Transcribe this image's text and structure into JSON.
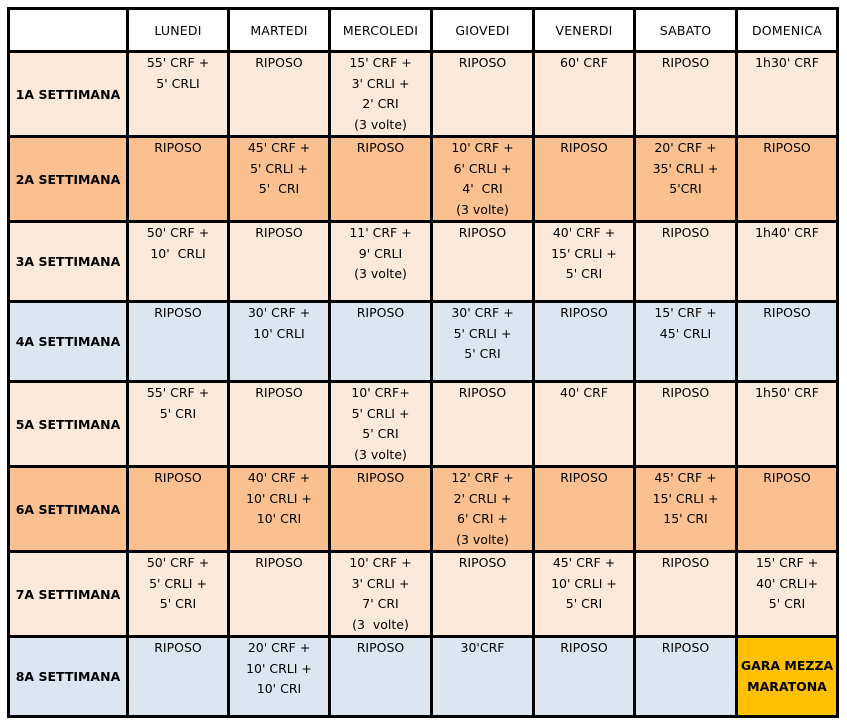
{
  "colors": {
    "light_peach": "#FDE9D9",
    "orange": "#FAC090",
    "light_blue": "#DCE6F1",
    "gold": "#FFC000"
  },
  "header": {
    "corner": "",
    "days": [
      "LUNEDI",
      "MARTEDI",
      "MERCOLEDI",
      "GIOVEDI",
      "VENERDI",
      "SABATO",
      "DOMENICA"
    ]
  },
  "weeks": [
    {
      "label": "1A SETTIMANA",
      "tone": "light_peach",
      "days": [
        [
          "55' CRF +",
          "5' CRLI"
        ],
        [
          "RIPOSO"
        ],
        [
          "15' CRF +",
          "3' CRLI +",
          "2' CRI",
          "(3 volte)"
        ],
        [
          "RIPOSO"
        ],
        [
          "60' CRF"
        ],
        [
          "RIPOSO"
        ],
        [
          "1h30' CRF"
        ]
      ]
    },
    {
      "label": "2A SETTIMANA",
      "tone": "orange",
      "days": [
        [
          "RIPOSO"
        ],
        [
          "45' CRF +",
          "5' CRLI +",
          "5'  CRI"
        ],
        [
          "RIPOSO"
        ],
        [
          "10' CRF +",
          "6' CRLI +",
          "4'  CRI",
          "(3 volte)"
        ],
        [
          "RIPOSO"
        ],
        [
          "20' CRF +",
          "35' CRLI +",
          "5'CRI"
        ],
        [
          "RIPOSO"
        ]
      ]
    },
    {
      "label": "3A SETTIMANA",
      "tone": "light_peach",
      "days": [
        [
          "50' CRF +",
          "10'  CRLI"
        ],
        [
          "RIPOSO"
        ],
        [
          "11' CRF +",
          "9' CRLI",
          "(3 volte)"
        ],
        [
          "RIPOSO"
        ],
        [
          "40' CRF +",
          "15' CRLI +",
          "5' CRI"
        ],
        [
          "RIPOSO"
        ],
        [
          "1h40' CRF"
        ]
      ]
    },
    {
      "label": "4A SETTIMANA",
      "tone": "light_blue",
      "days": [
        [
          "RIPOSO"
        ],
        [
          "30' CRF +",
          "10' CRLI"
        ],
        [
          "RIPOSO"
        ],
        [
          "30' CRF +",
          "5' CRLI +",
          "5' CRI"
        ],
        [
          "RIPOSO"
        ],
        [
          "15' CRF +",
          "45' CRLI"
        ],
        [
          "RIPOSO"
        ]
      ]
    },
    {
      "label": "5A SETTIMANA",
      "tone": "light_peach",
      "days": [
        [
          "55' CRF +",
          "5' CRI"
        ],
        [
          "RIPOSO"
        ],
        [
          "10' CRF+",
          "5' CRLI +",
          "5' CRI",
          "(3 volte)"
        ],
        [
          "RIPOSO"
        ],
        [
          "40' CRF"
        ],
        [
          "RIPOSO"
        ],
        [
          "1h50' CRF"
        ]
      ]
    },
    {
      "label": "6A SETTIMANA",
      "tone": "orange",
      "days": [
        [
          "RIPOSO"
        ],
        [
          "40' CRF +",
          "10' CRLI +",
          "10' CRI"
        ],
        [
          "RIPOSO"
        ],
        [
          "12' CRF +",
          "2' CRLI +",
          "6' CRI +",
          "(3 volte)"
        ],
        [
          "RIPOSO"
        ],
        [
          "45' CRF +",
          "15' CRLI +",
          "15' CRI"
        ],
        [
          "RIPOSO"
        ]
      ]
    },
    {
      "label": "7A SETTIMANA",
      "tone": "light_peach",
      "days": [
        [
          "50' CRF +",
          "5' CRLI +",
          "5' CRI"
        ],
        [
          "RIPOSO"
        ],
        [
          "10' CRF +",
          "3' CRLI +",
          "7' CRI",
          "(3  volte)"
        ],
        [
          "RIPOSO"
        ],
        [
          "45' CRF +",
          "10' CRLI +",
          "5' CRI"
        ],
        [
          "RIPOSO"
        ],
        [
          "15' CRF +",
          "40' CRLI+",
          "5' CRI"
        ]
      ]
    },
    {
      "label": "8A SETTIMANA",
      "tone": "light_blue",
      "days": [
        [
          "RIPOSO"
        ],
        [
          "20' CRF +",
          "10' CRLI +",
          "10' CRI"
        ],
        [
          "RIPOSO"
        ],
        [
          "30'CRF"
        ],
        [
          "RIPOSO"
        ],
        [
          "RIPOSO"
        ],
        [
          "GARA MEZZA",
          "MARATONA"
        ]
      ],
      "highlight_day": 6,
      "highlight_tone": "gold"
    }
  ]
}
